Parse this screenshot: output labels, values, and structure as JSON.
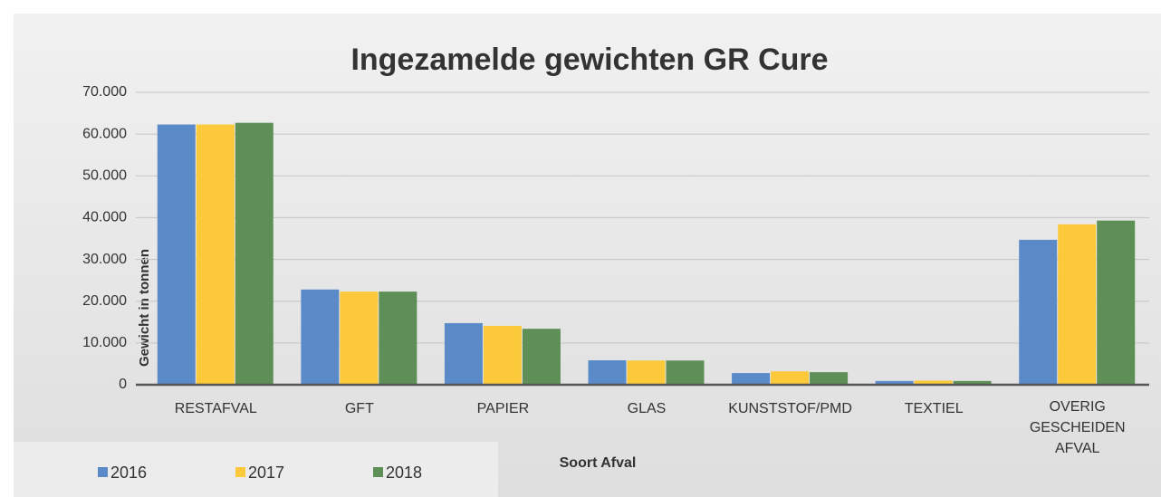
{
  "chart_data": {
    "type": "bar",
    "title": "Ingezamelde gewichten GR Cure",
    "x_label": "Soort Afval",
    "y_label": "Gewicht in tonnen",
    "categories": [
      "RESTAFVAL",
      "GFT",
      "PAPIER",
      "GLAS",
      "KUNSTSTOF/PMD",
      "TEXTIEL",
      "OVERIG GESCHEIDEN AFVAL"
    ],
    "series": [
      {
        "name": "2016",
        "color": "#5b8ac9",
        "values": [
          62300,
          22800,
          14750,
          5850,
          2800,
          900,
          34700
        ]
      },
      {
        "name": "2017",
        "color": "#fcc93a",
        "values": [
          62300,
          22300,
          14100,
          5800,
          3200,
          1000,
          38400
        ]
      },
      {
        "name": "2018",
        "color": "#5e8f57",
        "values": [
          62700,
          22300,
          13400,
          5800,
          3000,
          900,
          39300
        ]
      }
    ],
    "ylim": [
      0,
      70000
    ],
    "yticks": [
      0,
      {
        "value": 10000,
        "label": "10.000"
      },
      {
        "value": 20000,
        "label": "20.000"
      },
      {
        "value": 30000,
        "label": "30.000"
      },
      {
        "value": 40000,
        "label": "40.000"
      },
      {
        "value": 50000,
        "label": "50.000"
      },
      {
        "value": 60000,
        "label": "60.000"
      },
      {
        "value": 70000,
        "label": "70.000"
      }
    ],
    "grid": true,
    "legend": "bottom-left"
  }
}
